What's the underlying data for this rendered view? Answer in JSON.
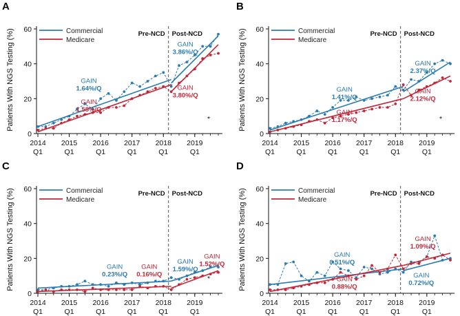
{
  "colors": {
    "commercial": "#2b7bb0",
    "medicare": "#c0283a",
    "axis": "#111111",
    "ncd_line": "#555555"
  },
  "chart_data": [
    {
      "type": "line",
      "panel": "A",
      "ylabel": "Patients With NGS Testing (%)",
      "ylim": [
        0,
        60
      ],
      "yticks": [
        0,
        20,
        40,
        60
      ],
      "xticks": [
        {
          "year": "2014",
          "q": "Q1",
          "x": 0
        },
        {
          "year": "2015",
          "q": "Q1",
          "x": 4
        },
        {
          "year": "2016",
          "q": "Q1",
          "x": 8
        },
        {
          "year": "2017",
          "q": "Q1",
          "x": 12
        },
        {
          "year": "2018",
          "q": "Q1",
          "x": 16
        },
        {
          "year": "2019",
          "q": "Q1",
          "x": 20
        }
      ],
      "xlim": [
        0,
        23
      ],
      "ncd_x": 17,
      "labels": {
        "pre": "Pre-NCD",
        "post": "Post-NCD"
      },
      "legend": [
        "Commercial",
        "Medicare"
      ],
      "asterisk": "*",
      "series": [
        {
          "name": "Commercial",
          "color": "commercial",
          "x": [
            0,
            1,
            2,
            3,
            4,
            5,
            6,
            7,
            8,
            9,
            10,
            11,
            12,
            13,
            14,
            15,
            16,
            17,
            18,
            19,
            20,
            21,
            22,
            23
          ],
          "values": [
            4,
            4,
            6,
            8,
            10,
            14,
            17,
            14,
            20,
            23,
            19,
            24,
            29,
            27,
            30,
            33,
            35,
            27,
            39,
            41,
            45,
            50,
            50,
            57
          ],
          "trend": [
            [
              0,
              4
            ],
            [
              17,
              31
            ],
            [
              17,
              29
            ],
            [
              23,
              56
            ]
          ]
        },
        {
          "name": "Medicare",
          "color": "medicare",
          "x": [
            0,
            1,
            2,
            3,
            4,
            5,
            6,
            7,
            8,
            9,
            10,
            11,
            12,
            13,
            14,
            15,
            16,
            17,
            18,
            19,
            20,
            21,
            22,
            23
          ],
          "values": [
            2,
            3,
            3,
            6,
            8,
            10,
            11,
            12,
            12,
            15,
            15,
            16,
            20,
            22,
            24,
            26,
            27,
            24,
            29,
            33,
            37,
            43,
            45,
            46
          ],
          "trend": [
            [
              0,
              1
            ],
            [
              17,
              28
            ],
            [
              17,
              24
            ],
            [
              23,
              51
            ]
          ]
        }
      ],
      "annotations": [
        {
          "lines": [
            "GAIN",
            "1.64%/Q"
          ],
          "color": "commercial",
          "x": 6.5,
          "y": 29
        },
        {
          "lines": [
            "GAIN",
            "1.58%/Q"
          ],
          "color": "medicare",
          "x": 6.5,
          "y": 17
        },
        {
          "lines": [
            "GAIN",
            "3.86%/Q"
          ],
          "color": "commercial",
          "x": 18.8,
          "y": 50
        },
        {
          "lines": [
            "GAIN",
            "3.80%/Q"
          ],
          "color": "medicare",
          "x": 18.8,
          "y": 25
        }
      ]
    },
    {
      "type": "line",
      "panel": "B",
      "ylabel": "Patients With NGS Testing (%)",
      "ylim": [
        0,
        60
      ],
      "yticks": [
        0,
        20,
        40,
        60
      ],
      "xticks": [
        {
          "year": "2014",
          "q": "Q1",
          "x": 0
        },
        {
          "year": "2015",
          "q": "Q1",
          "x": 4
        },
        {
          "year": "2016",
          "q": "Q1",
          "x": 8
        },
        {
          "year": "2017",
          "q": "Q1",
          "x": 12
        },
        {
          "year": "2018",
          "q": "Q1",
          "x": 16
        },
        {
          "year": "2019",
          "q": "Q1",
          "x": 20
        }
      ],
      "xlim": [
        0,
        23
      ],
      "ncd_x": 17,
      "labels": {
        "pre": "Pre-NCD",
        "post": "Post-NCD"
      },
      "legend": [
        "Commercial",
        "Medicare"
      ],
      "asterisk": "*",
      "series": [
        {
          "name": "Commercial",
          "color": "commercial",
          "x": [
            0,
            1,
            2,
            3,
            4,
            5,
            6,
            7,
            8,
            9,
            10,
            11,
            12,
            13,
            14,
            15,
            16,
            17,
            18,
            19,
            20,
            21,
            22,
            23
          ],
          "values": [
            3,
            4,
            6,
            7,
            8,
            10,
            13,
            11,
            15,
            19,
            19,
            21,
            19,
            20,
            21,
            22,
            27,
            25,
            31,
            30,
            35,
            40,
            42,
            40
          ],
          "trend": [
            [
              0,
              2
            ],
            [
              17,
              27
            ],
            [
              17,
              24
            ],
            [
              23,
              41
            ]
          ]
        },
        {
          "name": "Medicare",
          "color": "medicare",
          "x": [
            0,
            1,
            2,
            3,
            4,
            5,
            6,
            7,
            8,
            9,
            10,
            11,
            12,
            13,
            14,
            15,
            16,
            17,
            18,
            19,
            20,
            21,
            22,
            23
          ],
          "values": [
            1,
            2,
            3,
            4,
            5,
            7,
            8,
            6,
            9,
            10,
            11,
            12,
            13,
            14,
            15,
            15,
            17,
            28,
            22,
            25,
            27,
            29,
            32,
            30
          ],
          "trend": [
            [
              0,
              1
            ],
            [
              17,
              20
            ],
            [
              17,
              20
            ],
            [
              23,
              33
            ]
          ]
        }
      ],
      "annotations": [
        {
          "lines": [
            "GAIN",
            "1.41%/Q"
          ],
          "color": "commercial",
          "x": 9.5,
          "y": 24
        },
        {
          "lines": [
            "GAIN",
            "1.17%/Q"
          ],
          "color": "medicare",
          "x": 9.5,
          "y": 11
        },
        {
          "lines": [
            "GAIN",
            "2.37%/Q"
          ],
          "color": "commercial",
          "x": 19.5,
          "y": 39
        },
        {
          "lines": [
            "GAIN",
            "2.12%/Q"
          ],
          "color": "medicare",
          "x": 19.5,
          "y": 23
        }
      ]
    },
    {
      "type": "line",
      "panel": "C",
      "ylabel": "Patients With NGS Testing (%)",
      "ylim": [
        0,
        60
      ],
      "yticks": [
        0,
        20,
        40,
        60
      ],
      "xticks": [
        {
          "year": "2014",
          "q": "Q1",
          "x": 0
        },
        {
          "year": "2015",
          "q": "Q1",
          "x": 4
        },
        {
          "year": "2016",
          "q": "Q1",
          "x": 8
        },
        {
          "year": "2017",
          "q": "Q1",
          "x": 12
        },
        {
          "year": "2018",
          "q": "Q1",
          "x": 16
        },
        {
          "year": "2019",
          "q": "Q1",
          "x": 20
        }
      ],
      "xlim": [
        0,
        23
      ],
      "ncd_x": 17,
      "labels": {
        "pre": "Pre-NCD",
        "post": "Post-NCD"
      },
      "legend": [
        "Commercial",
        "Medicare"
      ],
      "asterisk": "*",
      "series": [
        {
          "name": "Commercial",
          "color": "commercial",
          "x": [
            0,
            1,
            2,
            3,
            4,
            5,
            6,
            7,
            8,
            9,
            10,
            11,
            12,
            13,
            14,
            15,
            16,
            17,
            18,
            19,
            20,
            21,
            22,
            23
          ],
          "values": [
            2,
            2,
            3,
            4,
            4,
            5,
            7,
            5,
            5,
            4,
            6,
            5,
            6,
            5,
            6,
            7,
            7,
            9,
            8,
            10,
            12,
            13,
            15,
            15
          ],
          "trend": [
            [
              0,
              3
            ],
            [
              17,
              7
            ],
            [
              17,
              7
            ],
            [
              23,
              16
            ]
          ]
        },
        {
          "name": "Medicare",
          "color": "medicare",
          "x": [
            0,
            1,
            2,
            3,
            4,
            5,
            6,
            7,
            8,
            9,
            10,
            11,
            12,
            13,
            14,
            15,
            16,
            17,
            18,
            19,
            20,
            21,
            22,
            23
          ],
          "values": [
            1,
            2,
            1,
            2,
            2,
            2,
            1,
            3,
            2,
            2,
            2,
            2,
            2,
            4,
            3,
            4,
            4,
            2,
            5,
            8,
            9,
            10,
            11,
            12
          ],
          "trend": [
            [
              0,
              1
            ],
            [
              17,
              4
            ],
            [
              17,
              3
            ],
            [
              23,
              13
            ]
          ]
        }
      ],
      "annotations": [
        {
          "lines": [
            "GAIN",
            "0.23%/Q"
          ],
          "color": "commercial",
          "x": 9.8,
          "y": 14
        },
        {
          "lines": [
            "GAIN",
            "0.16%/Q"
          ],
          "color": "medicare",
          "x": 14.2,
          "y": 14
        },
        {
          "lines": [
            "GAIN",
            "1.59%/Q"
          ],
          "color": "commercial",
          "x": 18.8,
          "y": 17
        },
        {
          "lines": [
            "GAIN",
            "1.52%/Q"
          ],
          "color": "medicare",
          "x": 22.2,
          "y": 20
        }
      ]
    },
    {
      "type": "line",
      "panel": "D",
      "ylabel": "Patients With NGS Testing (%)",
      "ylim": [
        0,
        60
      ],
      "yticks": [
        0,
        20,
        40,
        60
      ],
      "xticks": [
        {
          "year": "2014",
          "q": "Q1",
          "x": 0
        },
        {
          "year": "2015",
          "q": "Q1",
          "x": 4
        },
        {
          "year": "2016",
          "q": "Q1",
          "x": 8
        },
        {
          "year": "2017",
          "q": "Q1",
          "x": 12
        },
        {
          "year": "2018",
          "q": "Q1",
          "x": 16
        },
        {
          "year": "2019",
          "q": "Q1",
          "x": 20
        }
      ],
      "xlim": [
        0,
        23
      ],
      "ncd_x": 17,
      "labels": {
        "pre": "Pre-NCD",
        "post": "Post-NCD"
      },
      "legend": [
        "Commercial",
        "Medicare"
      ],
      "asterisk": "",
      "series": [
        {
          "name": "Commercial",
          "color": "commercial",
          "x": [
            0,
            1,
            2,
            3,
            4,
            5,
            6,
            7,
            8,
            9,
            10,
            11,
            12,
            13,
            14,
            15,
            16,
            17,
            18,
            19,
            20,
            21,
            22,
            23
          ],
          "values": [
            5,
            5,
            17,
            18,
            10,
            7,
            12,
            10,
            18,
            14,
            13,
            9,
            15,
            14,
            11,
            12,
            14,
            12,
            18,
            18,
            21,
            33,
            19,
            20
          ],
          "trend": [
            [
              0,
              5
            ],
            [
              17,
              14
            ],
            [
              17,
              13
            ],
            [
              23,
              20
            ]
          ]
        },
        {
          "name": "Medicare",
          "color": "medicare",
          "x": [
            0,
            1,
            2,
            3,
            4,
            5,
            6,
            7,
            8,
            9,
            10,
            11,
            12,
            13,
            14,
            15,
            16,
            17,
            18,
            19,
            20,
            21,
            22,
            23
          ],
          "values": [
            2,
            2,
            2,
            3,
            4,
            5,
            6,
            6,
            8,
            12,
            10,
            8,
            10,
            16,
            12,
            14,
            22,
            14,
            17,
            17,
            21,
            20,
            22,
            19
          ],
          "trend": [
            [
              0,
              1
            ],
            [
              17,
              16
            ],
            [
              17,
              16
            ],
            [
              23,
              23
            ]
          ]
        }
      ],
      "annotations": [
        {
          "lines": [
            "GAIN",
            "0.51%/Q"
          ],
          "color": "commercial",
          "x": 9.2,
          "y": 21
        },
        {
          "lines": [
            "GAIN",
            "0.88%/Q"
          ],
          "color": "medicare",
          "x": 9.5,
          "y": 7
        },
        {
          "lines": [
            "GAIN",
            "1.09%/Q"
          ],
          "color": "medicare",
          "x": 19.5,
          "y": 30
        },
        {
          "lines": [
            "GAIN",
            "0.72%/Q"
          ],
          "color": "commercial",
          "x": 19.3,
          "y": 9
        }
      ]
    }
  ]
}
